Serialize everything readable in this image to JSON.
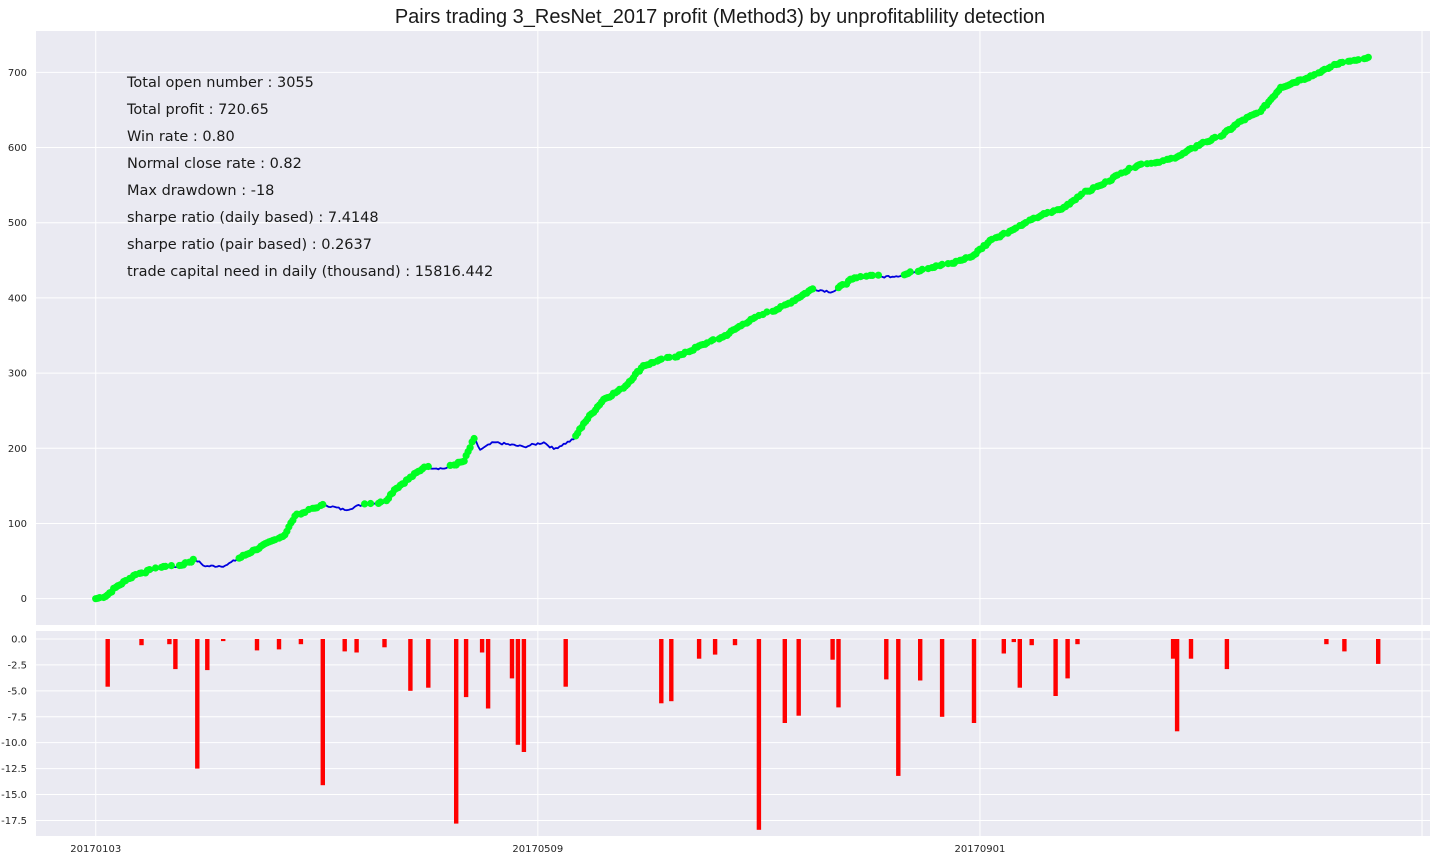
{
  "chart_data": [
    {
      "type": "line",
      "title": "Pairs trading 3_ResNet_2017 profit (Method3) by unprofitablility detection",
      "xlabel": "",
      "ylabel": "",
      "ylim": [
        -35,
        755
      ],
      "yticks": [
        0,
        100,
        200,
        300,
        400,
        500,
        600,
        700
      ],
      "series_color": "#0000dd",
      "marker_color": "#00ff22",
      "anchors": [
        [
          0,
          0
        ],
        [
          5,
          3
        ],
        [
          10,
          15
        ],
        [
          20,
          32
        ],
        [
          35,
          43
        ],
        [
          40,
          42
        ],
        [
          50,
          52
        ],
        [
          55,
          43
        ],
        [
          65,
          44
        ],
        [
          80,
          65
        ],
        [
          95,
          85
        ],
        [
          100,
          110
        ],
        [
          115,
          125
        ],
        [
          125,
          118
        ],
        [
          135,
          126
        ],
        [
          145,
          128
        ],
        [
          150,
          145
        ],
        [
          165,
          175
        ],
        [
          175,
          173
        ],
        [
          185,
          183
        ],
        [
          190,
          213
        ],
        [
          193,
          198
        ],
        [
          200,
          208
        ],
        [
          215,
          202
        ],
        [
          225,
          208
        ],
        [
          230,
          199
        ],
        [
          240,
          212
        ],
        [
          245,
          233
        ],
        [
          255,
          265
        ],
        [
          265,
          280
        ],
        [
          275,
          310
        ],
        [
          285,
          318
        ],
        [
          295,
          325
        ],
        [
          305,
          338
        ],
        [
          315,
          348
        ],
        [
          325,
          365
        ],
        [
          335,
          378
        ],
        [
          345,
          388
        ],
        [
          360,
          412
        ],
        [
          370,
          408
        ],
        [
          380,
          425
        ],
        [
          390,
          430
        ],
        [
          395,
          428
        ],
        [
          405,
          430
        ],
        [
          415,
          438
        ],
        [
          430,
          446
        ],
        [
          440,
          455
        ],
        [
          450,
          478
        ],
        [
          460,
          490
        ],
        [
          475,
          510
        ],
        [
          485,
          518
        ],
        [
          495,
          538
        ],
        [
          505,
          550
        ],
        [
          515,
          566
        ],
        [
          525,
          578
        ],
        [
          535,
          580
        ],
        [
          545,
          590
        ],
        [
          555,
          605
        ],
        [
          565,
          615
        ],
        [
          575,
          635
        ],
        [
          585,
          648
        ],
        [
          595,
          680
        ],
        [
          605,
          690
        ],
        [
          615,
          700
        ],
        [
          625,
          713
        ],
        [
          635,
          716
        ],
        [
          640,
          720
        ]
      ],
      "x_range": [
        -30,
        670
      ],
      "x_ticks": [
        {
          "x": 0,
          "label": "20170103"
        },
        {
          "x": 222,
          "label": "20170509"
        },
        {
          "x": 444,
          "label": "20170901"
        },
        {
          "x": 666,
          "label": ""
        }
      ],
      "stats": [
        "Total open number : 3055",
        "Total profit : 720.65",
        "Win rate : 0.80",
        "Normal close rate : 0.82",
        "Max drawdown : -18",
        "sharpe ratio (daily based) : 7.4148",
        "sharpe ratio (pair based) : 0.2637",
        "trade capital need in daily (thousand) : 15816.442"
      ]
    },
    {
      "type": "bar",
      "title": "",
      "bar_color": "#ff0000",
      "ylim": [
        -19,
        0
      ],
      "yticks": [
        0.0,
        -2.5,
        -5.0,
        -7.5,
        -10.0,
        -12.5,
        -15.0,
        -17.5
      ],
      "ytick_labels": [
        "0.0",
        "-2.5",
        "-5.0",
        "-7.5",
        "-10.0",
        "-12.5",
        "-15.0",
        "-17.5"
      ],
      "x_ticks": [
        {
          "x": 0,
          "label": "20170103"
        },
        {
          "x": 222,
          "label": "20170509"
        },
        {
          "x": 444,
          "label": "20170901"
        },
        {
          "x": 666,
          "label": ""
        }
      ],
      "drawdowns": [
        [
          6,
          -4.6
        ],
        [
          23,
          -0.6
        ],
        [
          37,
          -0.5
        ],
        [
          40,
          -2.9
        ],
        [
          51,
          -12.5
        ],
        [
          56,
          -3.0
        ],
        [
          64,
          -0.2
        ],
        [
          81,
          -1.1
        ],
        [
          92,
          -1.0
        ],
        [
          103,
          -0.5
        ],
        [
          114,
          -14.1
        ],
        [
          125,
          -1.2
        ],
        [
          131,
          -1.3
        ],
        [
          145,
          -0.8
        ],
        [
          158,
          -5.0
        ],
        [
          167,
          -4.7
        ],
        [
          181,
          -17.8
        ],
        [
          186,
          -5.6
        ],
        [
          194,
          -1.3
        ],
        [
          197,
          -6.7
        ],
        [
          209,
          -3.8
        ],
        [
          212,
          -10.2
        ],
        [
          215,
          -10.9
        ],
        [
          236,
          -4.6
        ],
        [
          284,
          -6.2
        ],
        [
          289,
          -6.0
        ],
        [
          303,
          -1.9
        ],
        [
          311,
          -1.5
        ],
        [
          321,
          -0.6
        ],
        [
          333,
          -18.4
        ],
        [
          346,
          -8.1
        ],
        [
          353,
          -7.4
        ],
        [
          370,
          -2.0
        ],
        [
          373,
          -6.6
        ],
        [
          397,
          -3.9
        ],
        [
          403,
          -13.2
        ],
        [
          414,
          -4.0
        ],
        [
          425,
          -7.5
        ],
        [
          441,
          -8.1
        ],
        [
          456,
          -1.4
        ],
        [
          461,
          -0.3
        ],
        [
          464,
          -4.7
        ],
        [
          470,
          -0.6
        ],
        [
          482,
          -5.5
        ],
        [
          488,
          -3.8
        ],
        [
          493,
          -0.5
        ],
        [
          541,
          -1.9
        ],
        [
          543,
          -8.9
        ],
        [
          550,
          -1.9
        ],
        [
          568,
          -2.9
        ],
        [
          618,
          -0.5
        ],
        [
          627,
          -1.2
        ],
        [
          644,
          -2.4
        ]
      ]
    }
  ]
}
